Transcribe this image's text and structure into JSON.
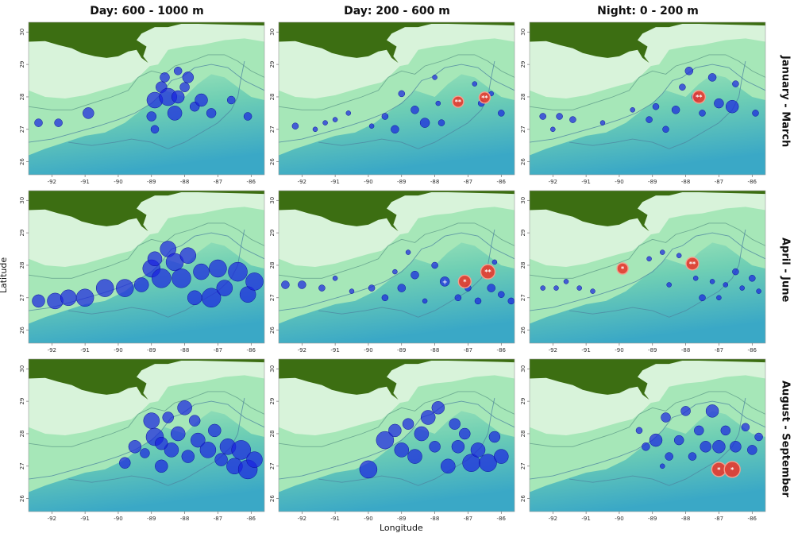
{
  "figure": {
    "column_titles": [
      "Day: 600 - 1000 m",
      "Day: 200 - 600 m",
      "Night: 0 - 200 m"
    ],
    "row_titles": [
      "January - March",
      "April - June",
      "August - September"
    ],
    "ylabel": "Latitude",
    "xlabel": "Longitude",
    "x_ticks": [
      "-92",
      "-91",
      "-90",
      "-89",
      "-88",
      "-87",
      "-86"
    ],
    "y_ticks": [
      "26",
      "27",
      "28",
      "29",
      "30"
    ]
  },
  "map": {
    "lon_range": [
      -92.7,
      -85.6
    ],
    "lat_range": [
      25.6,
      30.3
    ],
    "colors": {
      "land": "#3c6e12",
      "shelf": "#d8f3da",
      "slope": "#a6e7b8",
      "deep": "#3aa8c6",
      "bubble_blue": "#1a22e0",
      "bubble_red": "#e8392e"
    }
  },
  "panels": [
    {
      "row": 0,
      "col": 0,
      "points": [
        {
          "lon": -92.4,
          "lat": 27.2,
          "r": 5
        },
        {
          "lon": -91.8,
          "lat": 27.2,
          "r": 5
        },
        {
          "lon": -90.9,
          "lat": 27.5,
          "r": 7
        },
        {
          "lon": -89.0,
          "lat": 27.4,
          "r": 6
        },
        {
          "lon": -88.9,
          "lat": 27.0,
          "r": 5
        },
        {
          "lon": -88.9,
          "lat": 27.9,
          "r": 10
        },
        {
          "lon": -88.7,
          "lat": 28.3,
          "r": 7
        },
        {
          "lon": -88.6,
          "lat": 28.6,
          "r": 6
        },
        {
          "lon": -88.5,
          "lat": 28.0,
          "r": 11
        },
        {
          "lon": -88.3,
          "lat": 27.5,
          "r": 9
        },
        {
          "lon": -88.2,
          "lat": 28.8,
          "r": 5
        },
        {
          "lon": -88.2,
          "lat": 28.0,
          "r": 8
        },
        {
          "lon": -88.0,
          "lat": 28.3,
          "r": 6
        },
        {
          "lon": -87.9,
          "lat": 28.6,
          "r": 7
        },
        {
          "lon": -87.7,
          "lat": 27.7,
          "r": 6
        },
        {
          "lon": -87.5,
          "lat": 27.9,
          "r": 8
        },
        {
          "lon": -87.2,
          "lat": 27.5,
          "r": 6
        },
        {
          "lon": -86.6,
          "lat": 27.9,
          "r": 5
        },
        {
          "lon": -86.1,
          "lat": 27.4,
          "r": 5
        }
      ]
    },
    {
      "row": 0,
      "col": 1,
      "points": [
        {
          "lon": -92.2,
          "lat": 27.1,
          "r": 4
        },
        {
          "lon": -91.6,
          "lat": 27.0,
          "r": 3
        },
        {
          "lon": -91.3,
          "lat": 27.2,
          "r": 3
        },
        {
          "lon": -91.0,
          "lat": 27.3,
          "r": 3
        },
        {
          "lon": -90.6,
          "lat": 27.5,
          "r": 3
        },
        {
          "lon": -89.9,
          "lat": 27.1,
          "r": 3
        },
        {
          "lon": -89.5,
          "lat": 27.4,
          "r": 4
        },
        {
          "lon": -89.2,
          "lat": 27.0,
          "r": 5
        },
        {
          "lon": -89.0,
          "lat": 28.1,
          "r": 4
        },
        {
          "lon": -88.6,
          "lat": 27.6,
          "r": 5
        },
        {
          "lon": -88.3,
          "lat": 27.2,
          "r": 6
        },
        {
          "lon": -88.0,
          "lat": 28.6,
          "r": 3
        },
        {
          "lon": -87.9,
          "lat": 27.8,
          "r": 3
        },
        {
          "lon": -87.8,
          "lat": 27.2,
          "r": 4
        },
        {
          "lon": -86.8,
          "lat": 28.4,
          "r": 3
        },
        {
          "lon": -86.6,
          "lat": 27.8,
          "r": 4
        },
        {
          "lon": -86.3,
          "lat": 28.1,
          "r": 3
        },
        {
          "lon": -86.0,
          "lat": 27.5,
          "r": 4
        },
        {
          "lon": -87.3,
          "lat": 27.85,
          "r": 7,
          "color": "red",
          "marker": "**"
        },
        {
          "lon": -86.5,
          "lat": 27.98,
          "r": 7,
          "color": "red",
          "marker": "**"
        }
      ]
    },
    {
      "row": 0,
      "col": 2,
      "points": [
        {
          "lon": -92.3,
          "lat": 27.4,
          "r": 4
        },
        {
          "lon": -92.0,
          "lat": 27.0,
          "r": 3
        },
        {
          "lon": -91.8,
          "lat": 27.4,
          "r": 4
        },
        {
          "lon": -91.4,
          "lat": 27.3,
          "r": 4
        },
        {
          "lon": -90.5,
          "lat": 27.2,
          "r": 3
        },
        {
          "lon": -89.6,
          "lat": 27.6,
          "r": 3
        },
        {
          "lon": -89.1,
          "lat": 27.3,
          "r": 4
        },
        {
          "lon": -88.9,
          "lat": 27.7,
          "r": 4
        },
        {
          "lon": -88.6,
          "lat": 27.0,
          "r": 4
        },
        {
          "lon": -88.3,
          "lat": 27.6,
          "r": 5
        },
        {
          "lon": -88.1,
          "lat": 28.3,
          "r": 4
        },
        {
          "lon": -87.9,
          "lat": 28.8,
          "r": 5
        },
        {
          "lon": -87.7,
          "lat": 28.0,
          "r": 5
        },
        {
          "lon": -87.5,
          "lat": 27.5,
          "r": 4
        },
        {
          "lon": -87.2,
          "lat": 28.6,
          "r": 5
        },
        {
          "lon": -87.0,
          "lat": 27.8,
          "r": 6
        },
        {
          "lon": -86.6,
          "lat": 27.7,
          "r": 8
        },
        {
          "lon": -86.5,
          "lat": 28.4,
          "r": 4
        },
        {
          "lon": -85.9,
          "lat": 27.5,
          "r": 4
        },
        {
          "lon": -87.6,
          "lat": 28.0,
          "r": 8,
          "color": "red",
          "marker": "**"
        }
      ]
    },
    {
      "row": 1,
      "col": 0,
      "points": [
        {
          "lon": -92.4,
          "lat": 26.9,
          "r": 8
        },
        {
          "lon": -91.9,
          "lat": 26.9,
          "r": 10
        },
        {
          "lon": -91.5,
          "lat": 27.0,
          "r": 10
        },
        {
          "lon": -91.0,
          "lat": 27.0,
          "r": 11
        },
        {
          "lon": -90.4,
          "lat": 27.3,
          "r": 11
        },
        {
          "lon": -89.8,
          "lat": 27.3,
          "r": 11
        },
        {
          "lon": -89.3,
          "lat": 27.4,
          "r": 9
        },
        {
          "lon": -89.0,
          "lat": 27.9,
          "r": 11
        },
        {
          "lon": -88.9,
          "lat": 28.2,
          "r": 9
        },
        {
          "lon": -88.7,
          "lat": 27.6,
          "r": 12
        },
        {
          "lon": -88.5,
          "lat": 28.5,
          "r": 10
        },
        {
          "lon": -88.3,
          "lat": 28.1,
          "r": 11
        },
        {
          "lon": -88.1,
          "lat": 27.6,
          "r": 12
        },
        {
          "lon": -87.9,
          "lat": 28.3,
          "r": 10
        },
        {
          "lon": -87.7,
          "lat": 27.0,
          "r": 9
        },
        {
          "lon": -87.5,
          "lat": 27.8,
          "r": 10
        },
        {
          "lon": -87.2,
          "lat": 27.0,
          "r": 12
        },
        {
          "lon": -87.0,
          "lat": 27.9,
          "r": 11
        },
        {
          "lon": -86.8,
          "lat": 27.3,
          "r": 10
        },
        {
          "lon": -86.4,
          "lat": 27.8,
          "r": 12
        },
        {
          "lon": -86.1,
          "lat": 27.1,
          "r": 10
        },
        {
          "lon": -85.9,
          "lat": 27.5,
          "r": 11
        }
      ]
    },
    {
      "row": 1,
      "col": 1,
      "points": [
        {
          "lon": -92.5,
          "lat": 27.4,
          "r": 5
        },
        {
          "lon": -92.0,
          "lat": 27.4,
          "r": 5
        },
        {
          "lon": -91.4,
          "lat": 27.3,
          "r": 4
        },
        {
          "lon": -91.0,
          "lat": 27.6,
          "r": 3
        },
        {
          "lon": -90.5,
          "lat": 27.2,
          "r": 3
        },
        {
          "lon": -89.9,
          "lat": 27.3,
          "r": 4
        },
        {
          "lon": -89.5,
          "lat": 27.0,
          "r": 4
        },
        {
          "lon": -89.2,
          "lat": 27.8,
          "r": 3
        },
        {
          "lon": -89.0,
          "lat": 27.3,
          "r": 5
        },
        {
          "lon": -88.8,
          "lat": 28.4,
          "r": 3
        },
        {
          "lon": -88.6,
          "lat": 27.7,
          "r": 5
        },
        {
          "lon": -88.3,
          "lat": 26.9,
          "r": 3
        },
        {
          "lon": -88.0,
          "lat": 28.0,
          "r": 4
        },
        {
          "lon": -87.3,
          "lat": 27.0,
          "r": 4
        },
        {
          "lon": -87.0,
          "lat": 27.3,
          "r": 4
        },
        {
          "lon": -86.7,
          "lat": 26.9,
          "r": 4
        },
        {
          "lon": -86.3,
          "lat": 27.3,
          "r": 5
        },
        {
          "lon": -86.0,
          "lat": 27.1,
          "r": 4
        },
        {
          "lon": -85.7,
          "lat": 26.9,
          "r": 4
        },
        {
          "lon": -86.2,
          "lat": 28.1,
          "r": 3
        },
        {
          "lon": -87.7,
          "lat": 27.5,
          "r": 6,
          "marker": "+"
        },
        {
          "lon": -87.1,
          "lat": 27.5,
          "r": 8,
          "color": "red",
          "marker": "*"
        },
        {
          "lon": -86.4,
          "lat": 27.8,
          "r": 9,
          "color": "red",
          "marker": "**"
        }
      ]
    },
    {
      "row": 1,
      "col": 2,
      "points": [
        {
          "lon": -92.3,
          "lat": 27.3,
          "r": 3
        },
        {
          "lon": -91.9,
          "lat": 27.3,
          "r": 3
        },
        {
          "lon": -91.6,
          "lat": 27.5,
          "r": 3
        },
        {
          "lon": -91.2,
          "lat": 27.3,
          "r": 3
        },
        {
          "lon": -90.8,
          "lat": 27.2,
          "r": 3
        },
        {
          "lon": -89.1,
          "lat": 28.2,
          "r": 3
        },
        {
          "lon": -88.7,
          "lat": 28.4,
          "r": 3
        },
        {
          "lon": -88.2,
          "lat": 28.3,
          "r": 3
        },
        {
          "lon": -88.5,
          "lat": 27.4,
          "r": 3
        },
        {
          "lon": -87.7,
          "lat": 27.6,
          "r": 3
        },
        {
          "lon": -87.5,
          "lat": 27.0,
          "r": 4
        },
        {
          "lon": -87.2,
          "lat": 27.5,
          "r": 3
        },
        {
          "lon": -87.0,
          "lat": 27.0,
          "r": 3
        },
        {
          "lon": -86.8,
          "lat": 27.4,
          "r": 3
        },
        {
          "lon": -86.5,
          "lat": 27.8,
          "r": 4
        },
        {
          "lon": -86.3,
          "lat": 27.3,
          "r": 3
        },
        {
          "lon": -86.0,
          "lat": 27.6,
          "r": 4
        },
        {
          "lon": -85.8,
          "lat": 27.2,
          "r": 3
        },
        {
          "lon": -89.9,
          "lat": 27.9,
          "r": 7,
          "color": "red",
          "marker": "*"
        },
        {
          "lon": -87.8,
          "lat": 28.05,
          "r": 8,
          "color": "red",
          "marker": "**"
        }
      ]
    },
    {
      "row": 2,
      "col": 0,
      "points": [
        {
          "lon": -89.8,
          "lat": 27.1,
          "r": 7
        },
        {
          "lon": -89.5,
          "lat": 27.6,
          "r": 8
        },
        {
          "lon": -89.2,
          "lat": 27.4,
          "r": 6
        },
        {
          "lon": -89.0,
          "lat": 28.4,
          "r": 10
        },
        {
          "lon": -88.9,
          "lat": 27.9,
          "r": 11
        },
        {
          "lon": -88.7,
          "lat": 27.0,
          "r": 8
        },
        {
          "lon": -88.5,
          "lat": 28.5,
          "r": 7
        },
        {
          "lon": -88.4,
          "lat": 27.5,
          "r": 9
        },
        {
          "lon": -88.2,
          "lat": 28.0,
          "r": 9
        },
        {
          "lon": -88.0,
          "lat": 28.8,
          "r": 9
        },
        {
          "lon": -87.9,
          "lat": 27.3,
          "r": 8
        },
        {
          "lon": -87.7,
          "lat": 28.4,
          "r": 7
        },
        {
          "lon": -87.6,
          "lat": 27.8,
          "r": 9
        },
        {
          "lon": -87.3,
          "lat": 27.5,
          "r": 10
        },
        {
          "lon": -87.1,
          "lat": 28.1,
          "r": 8
        },
        {
          "lon": -86.9,
          "lat": 27.2,
          "r": 8
        },
        {
          "lon": -86.7,
          "lat": 27.6,
          "r": 10
        },
        {
          "lon": -86.5,
          "lat": 27.0,
          "r": 10
        },
        {
          "lon": -86.3,
          "lat": 27.5,
          "r": 12
        },
        {
          "lon": -86.1,
          "lat": 26.9,
          "r": 12
        },
        {
          "lon": -85.9,
          "lat": 27.2,
          "r": 10
        },
        {
          "lon": -88.7,
          "lat": 27.7,
          "r": 8
        }
      ]
    },
    {
      "row": 2,
      "col": 1,
      "points": [
        {
          "lon": -90.0,
          "lat": 26.9,
          "r": 11
        },
        {
          "lon": -89.5,
          "lat": 27.8,
          "r": 11
        },
        {
          "lon": -89.2,
          "lat": 28.1,
          "r": 8
        },
        {
          "lon": -89.0,
          "lat": 27.5,
          "r": 9
        },
        {
          "lon": -88.8,
          "lat": 28.3,
          "r": 7
        },
        {
          "lon": -88.6,
          "lat": 27.3,
          "r": 9
        },
        {
          "lon": -88.4,
          "lat": 28.0,
          "r": 9
        },
        {
          "lon": -88.2,
          "lat": 28.5,
          "r": 9
        },
        {
          "lon": -88.0,
          "lat": 27.6,
          "r": 7
        },
        {
          "lon": -87.9,
          "lat": 28.8,
          "r": 8
        },
        {
          "lon": -87.6,
          "lat": 27.0,
          "r": 9
        },
        {
          "lon": -87.4,
          "lat": 28.3,
          "r": 7
        },
        {
          "lon": -87.3,
          "lat": 27.6,
          "r": 8
        },
        {
          "lon": -87.1,
          "lat": 28.0,
          "r": 7
        },
        {
          "lon": -86.9,
          "lat": 27.1,
          "r": 11
        },
        {
          "lon": -86.7,
          "lat": 27.5,
          "r": 9
        },
        {
          "lon": -86.4,
          "lat": 27.1,
          "r": 11
        },
        {
          "lon": -86.2,
          "lat": 27.9,
          "r": 7
        },
        {
          "lon": -86.0,
          "lat": 27.3,
          "r": 9
        }
      ]
    },
    {
      "row": 2,
      "col": 2,
      "points": [
        {
          "lon": -89.4,
          "lat": 28.1,
          "r": 4
        },
        {
          "lon": -89.2,
          "lat": 27.6,
          "r": 5
        },
        {
          "lon": -88.9,
          "lat": 27.8,
          "r": 8
        },
        {
          "lon": -88.6,
          "lat": 28.5,
          "r": 6
        },
        {
          "lon": -88.5,
          "lat": 27.3,
          "r": 5
        },
        {
          "lon": -88.2,
          "lat": 27.8,
          "r": 6
        },
        {
          "lon": -88.0,
          "lat": 28.7,
          "r": 6
        },
        {
          "lon": -87.8,
          "lat": 27.3,
          "r": 5
        },
        {
          "lon": -87.6,
          "lat": 28.1,
          "r": 6
        },
        {
          "lon": -87.4,
          "lat": 27.6,
          "r": 7
        },
        {
          "lon": -87.2,
          "lat": 28.7,
          "r": 8
        },
        {
          "lon": -87.0,
          "lat": 27.6,
          "r": 8
        },
        {
          "lon": -86.8,
          "lat": 28.1,
          "r": 6
        },
        {
          "lon": -86.5,
          "lat": 27.6,
          "r": 7
        },
        {
          "lon": -86.2,
          "lat": 28.2,
          "r": 5
        },
        {
          "lon": -86.0,
          "lat": 27.5,
          "r": 6
        },
        {
          "lon": -85.8,
          "lat": 27.9,
          "r": 5
        },
        {
          "lon": -88.7,
          "lat": 27.0,
          "r": 3
        },
        {
          "lon": -87.0,
          "lat": 26.9,
          "r": 9,
          "color": "red",
          "marker": "*"
        },
        {
          "lon": -86.6,
          "lat": 26.9,
          "r": 10,
          "color": "red",
          "marker": "*"
        }
      ]
    }
  ]
}
